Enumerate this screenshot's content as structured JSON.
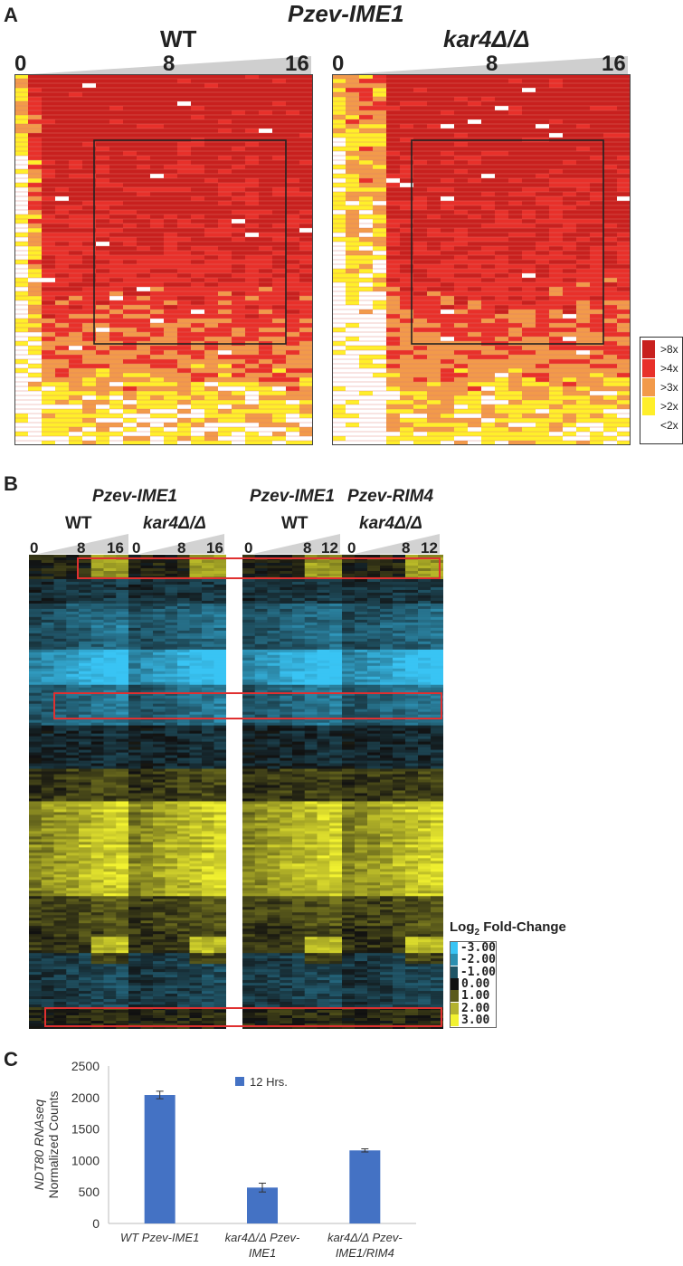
{
  "panel_a": {
    "letter": "A",
    "title": "Pzev-IME1",
    "heatmaps": [
      {
        "label": "WT",
        "ticks": [
          "0",
          "8",
          "16"
        ]
      },
      {
        "label": "kar4Δ/Δ",
        "ticks": [
          "0",
          "8",
          "16"
        ]
      }
    ],
    "legend": [
      {
        "label": ">8x",
        "color": "#c8201e"
      },
      {
        "label": ">4x",
        "color": "#e8302a"
      },
      {
        "label": ">3x",
        "color": "#f29a4a"
      },
      {
        "label": ">2x",
        "color": "#ffef2a"
      },
      {
        "label": "<2x",
        "color": "#ffffff"
      }
    ]
  },
  "panel_b": {
    "letter": "B",
    "group_titles": [
      "Pzev-IME1",
      "Pzev-IME1",
      "Pzev-RIM4"
    ],
    "heatmaps": [
      {
        "label": "WT",
        "ticks": [
          "0",
          "8",
          "16"
        ]
      },
      {
        "label": "kar4Δ/Δ",
        "ticks": [
          "0",
          "8",
          "16"
        ]
      },
      {
        "label": "WT",
        "ticks": [
          "0",
          "8",
          "12"
        ]
      },
      {
        "label": "kar4Δ/Δ",
        "ticks": [
          "0",
          "8",
          "12"
        ]
      }
    ],
    "legend_title": "Log",
    "legend_title_sub": "2",
    "legend_title_rest": " Fold-Change",
    "legend": [
      {
        "label": "-3.00",
        "color": "#39c4f4"
      },
      {
        "label": "-2.00",
        "color": "#2b8fb0"
      },
      {
        "label": "-1.00",
        "color": "#1f5566"
      },
      {
        "label": "0.00",
        "color": "#111111"
      },
      {
        "label": "1.00",
        "color": "#5b5a1c"
      },
      {
        "label": "2.00",
        "color": "#b3b22e"
      },
      {
        "label": "3.00",
        "color": "#f2f230"
      }
    ]
  },
  "chart_data": {
    "type": "bar",
    "letter": "C",
    "title": "",
    "ylabel": "NDT80 RNAseq",
    "ylabel2": "Normalized Counts",
    "xlabel": "",
    "categories": [
      "WT Pzev-IME1",
      "kar4Δ/Δ Pzev-IME1",
      "kar4Δ/Δ Pzev-IME1/RIM4"
    ],
    "category_lines": [
      [
        "WT Pzev-IME1"
      ],
      [
        "kar4Δ/Δ Pzev-",
        "IME1"
      ],
      [
        "kar4Δ/Δ Pzev-",
        "IME1/RIM4"
      ]
    ],
    "series": [
      {
        "name": "12 Hrs.",
        "values": [
          2040,
          570,
          1160
        ],
        "errors": [
          60,
          70,
          25
        ]
      }
    ],
    "ylim": [
      0,
      2500
    ],
    "yticks": [
      0,
      500,
      1000,
      1500,
      2000,
      2500
    ],
    "bar_color": "#4472c4"
  }
}
